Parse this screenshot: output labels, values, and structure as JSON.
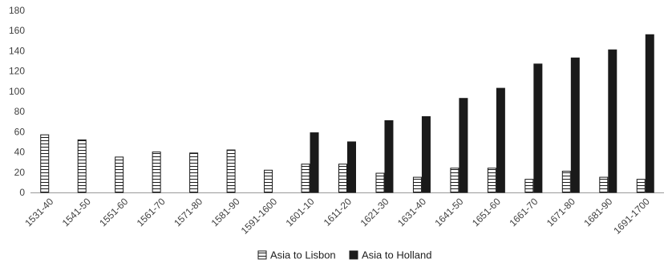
{
  "chart_data": {
    "type": "bar",
    "categories": [
      "1531-40",
      "1541-50",
      "1551-60",
      "1561-70",
      "1571-80",
      "1581-90",
      "1591-1600",
      "1601-10",
      "1611-20",
      "1621-30",
      "1631-40",
      "1641-50",
      "1651-60",
      "1661-70",
      "1671-80",
      "1681-90",
      "1691-1700"
    ],
    "series": [
      {
        "name": "Asia to Lisbon",
        "values": [
          57,
          52,
          35,
          40,
          39,
          42,
          22,
          28,
          28,
          19,
          15,
          24,
          24,
          13,
          21,
          15,
          13
        ],
        "color": "#ffffff",
        "pattern": "horizontal-stripes"
      },
      {
        "name": "Asia to Holland",
        "values": [
          null,
          null,
          null,
          null,
          null,
          null,
          null,
          59,
          50,
          71,
          75,
          93,
          103,
          127,
          133,
          141,
          156
        ],
        "color": "#1a1a1a",
        "pattern": "solid"
      }
    ],
    "ylim": [
      0,
      180
    ],
    "yticks": [
      0,
      20,
      40,
      60,
      80,
      100,
      120,
      140,
      160,
      180
    ],
    "grid": false,
    "legend": "bottom-center"
  }
}
